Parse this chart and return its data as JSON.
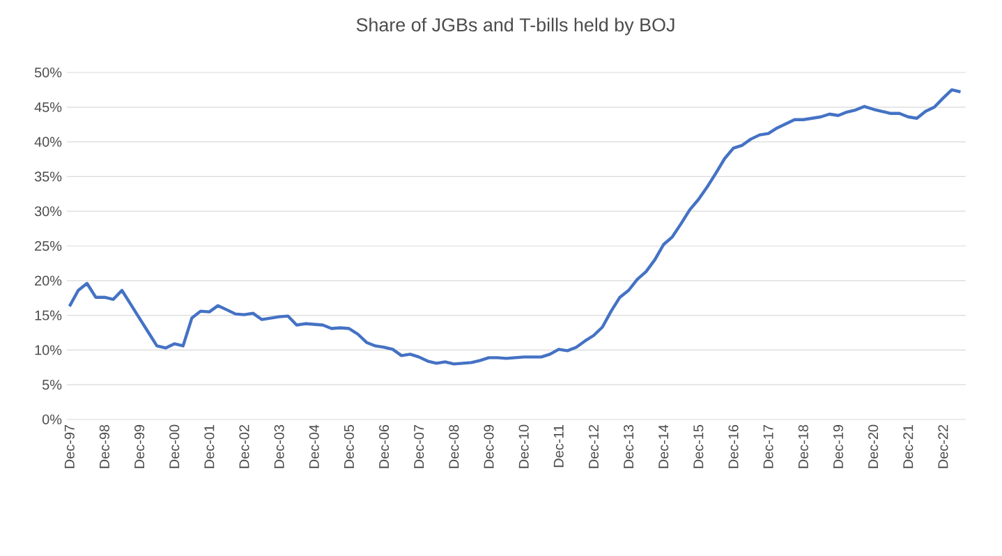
{
  "chart_data": {
    "type": "line",
    "title": "Share of JGBs and T-bills held by BOJ",
    "categories": [
      "Dec-97",
      null,
      null,
      null,
      "Dec-98",
      null,
      null,
      null,
      "Dec-99",
      null,
      null,
      null,
      "Dec-00",
      null,
      null,
      null,
      "Dec-01",
      null,
      null,
      null,
      "Dec-02",
      null,
      null,
      null,
      "Dec-03",
      null,
      null,
      null,
      "Dec-04",
      null,
      null,
      null,
      "Dec-05",
      null,
      null,
      null,
      "Dec-06",
      null,
      null,
      null,
      "Dec-07",
      null,
      null,
      null,
      "Dec-08",
      null,
      null,
      null,
      "Dec-09",
      null,
      null,
      null,
      "Dec-10",
      null,
      null,
      null,
      "Dec-11",
      null,
      null,
      null,
      "Dec-12",
      null,
      null,
      null,
      "Dec-13",
      null,
      null,
      null,
      "Dec-14",
      null,
      null,
      null,
      "Dec-15",
      null,
      null,
      null,
      "Dec-16",
      null,
      null,
      null,
      "Dec-17",
      null,
      null,
      null,
      "Dec-18",
      null,
      null,
      null,
      "Dec-19",
      null,
      null,
      null,
      "Dec-20",
      null,
      null,
      null,
      "Dec-21",
      null,
      null,
      null,
      "Dec-22",
      null,
      null
    ],
    "series": [
      {
        "color": "#4472c4",
        "values": [
          16.3,
          18.6,
          19.6,
          17.6,
          17.6,
          17.3,
          18.6,
          16.6,
          14.6,
          12.6,
          10.6,
          10.3,
          10.9,
          10.6,
          14.6,
          15.6,
          15.5,
          16.4,
          15.8,
          15.2,
          15.1,
          15.3,
          14.4,
          14.6,
          14.8,
          14.9,
          13.6,
          13.8,
          13.7,
          13.6,
          13.1,
          13.2,
          13.1,
          12.3,
          11.1,
          10.6,
          10.4,
          10.1,
          9.2,
          9.4,
          9.0,
          8.4,
          8.1,
          8.3,
          8.0,
          8.1,
          8.2,
          8.5,
          8.9,
          8.9,
          8.8,
          8.9,
          9.0,
          9.0,
          9.0,
          9.4,
          10.1,
          9.9,
          10.4,
          11.3,
          12.1,
          13.3,
          15.6,
          17.6,
          18.6,
          20.2,
          21.3,
          23.0,
          25.2,
          26.3,
          28.2,
          30.2,
          31.7,
          33.5,
          35.5,
          37.6,
          39.1,
          39.5,
          40.4,
          41.0,
          41.2,
          42.0,
          42.6,
          43.2,
          43.2,
          43.4,
          43.6,
          44.0,
          43.8,
          44.3,
          44.6,
          45.1,
          44.7,
          44.4,
          44.1,
          44.1,
          43.6,
          43.4,
          44.4,
          45.0,
          46.3,
          47.5,
          47.2
        ]
      }
    ],
    "ylim": [
      0,
      50
    ],
    "yticks": [
      {
        "value": 0,
        "label": "0%"
      },
      {
        "value": 5,
        "label": "5%"
      },
      {
        "value": 10,
        "label": "10%"
      },
      {
        "value": 15,
        "label": "15%"
      },
      {
        "value": 20,
        "label": "20%"
      },
      {
        "value": 25,
        "label": "25%"
      },
      {
        "value": 30,
        "label": "30%"
      },
      {
        "value": 35,
        "label": "35%"
      },
      {
        "value": 40,
        "label": "40%"
      },
      {
        "value": 45,
        "label": "45%"
      },
      {
        "value": 50,
        "label": "50%"
      }
    ],
    "grid": "y",
    "marker": "none",
    "line_style": "solid"
  }
}
